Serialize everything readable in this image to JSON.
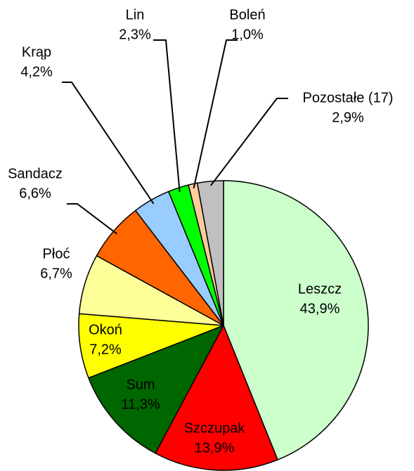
{
  "chart_data": {
    "type": "pie",
    "categories": [
      "Leszcz",
      "Szczupak",
      "Sum",
      "Okoń",
      "Płoć",
      "Sandacz",
      "Krąp",
      "Lin",
      "Boleń",
      "Pozostałe (17)"
    ],
    "values": [
      43.9,
      13.9,
      11.3,
      7.2,
      6.7,
      6.6,
      4.2,
      2.3,
      1.0,
      2.9
    ],
    "value_labels": [
      "43,9%",
      "13,9%",
      "11,3%",
      "7,2%",
      "6,7%",
      "6,6%",
      "4,2%",
      "2,3%",
      "1,0%",
      "2,9%"
    ],
    "colors": [
      "#ccffcc",
      "#ff0000",
      "#006600",
      "#ffff00",
      "#ffff99",
      "#ff6600",
      "#99ccff",
      "#00ff00",
      "#ffcc99",
      "#c0c0c0"
    ]
  }
}
